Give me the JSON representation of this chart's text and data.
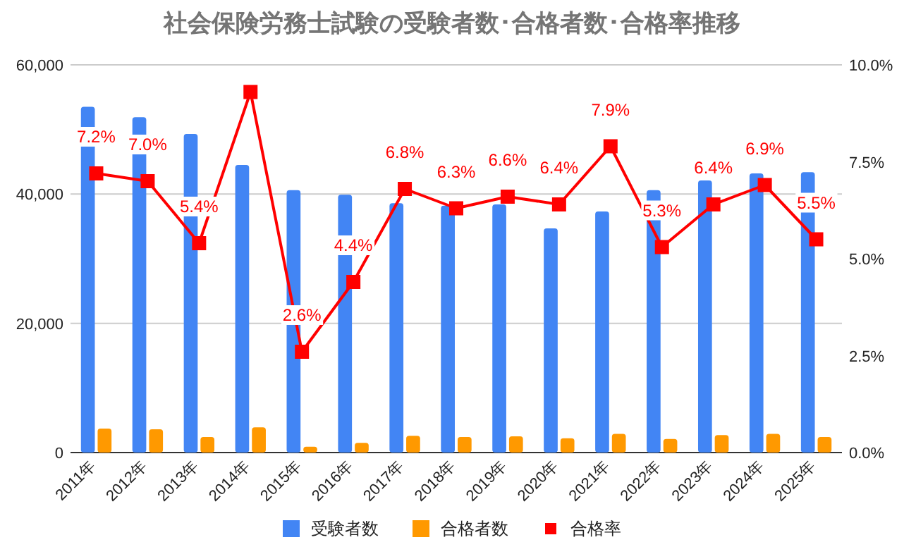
{
  "chart_data": {
    "type": "bar",
    "title": "社会保険労務士試験の受験者数･合格者数･合格率推移",
    "categories": [
      "2011年",
      "2012年",
      "2013年",
      "2014年",
      "2015年",
      "2016年",
      "2017年",
      "2018年",
      "2019年",
      "2020年",
      "2021年",
      "2022年",
      "2023年",
      "2024年",
      "2025年"
    ],
    "series": [
      {
        "name": "受験者数",
        "color": "#4285f4",
        "values": [
          53500,
          51900,
          49300,
          44500,
          40600,
          39900,
          38600,
          38200,
          38400,
          34700,
          37300,
          40600,
          42100,
          43200,
          43400
        ]
      },
      {
        "name": "合格者数",
        "color": "#ff9900",
        "values": [
          3700,
          3600,
          2400,
          3900,
          900,
          1500,
          2600,
          2400,
          2500,
          2200,
          2900,
          2100,
          2700,
          2900,
          2400
        ]
      },
      {
        "name": "合格率",
        "color": "#ff0000",
        "type": "line",
        "axis": "y2",
        "marker": "square",
        "values": [
          7.2,
          7.0,
          5.4,
          9.3,
          2.6,
          4.4,
          6.8,
          6.3,
          6.6,
          6.4,
          7.9,
          5.3,
          6.4,
          6.9,
          5.5
        ],
        "value_labels": [
          "7.2%",
          "7.0%",
          "5.4%",
          null,
          "2.6%",
          "4.4%",
          "6.8%",
          "6.3%",
          "6.6%",
          "6.4%",
          "7.9%",
          "5.3%",
          "6.4%",
          "6.9%",
          "5.5%"
        ]
      }
    ],
    "ylim": [
      0,
      60000
    ],
    "yticks": [
      0,
      {
        "value": 20000,
        "label": "20,000"
      },
      {
        "value": 40000,
        "label": "40,000"
      },
      {
        "value": 60000,
        "label": "60,000"
      }
    ],
    "y2lim": [
      0,
      10
    ],
    "y2ticks": [
      {
        "value": 0,
        "label": "0.0%"
      },
      {
        "value": 2.5,
        "label": "2.5%"
      },
      {
        "value": 5,
        "label": "5.0%"
      },
      {
        "value": 7.5,
        "label": "7.5%"
      },
      {
        "value": 10,
        "label": "10.0%"
      }
    ],
    "grid": "y",
    "legend": "bottom"
  }
}
